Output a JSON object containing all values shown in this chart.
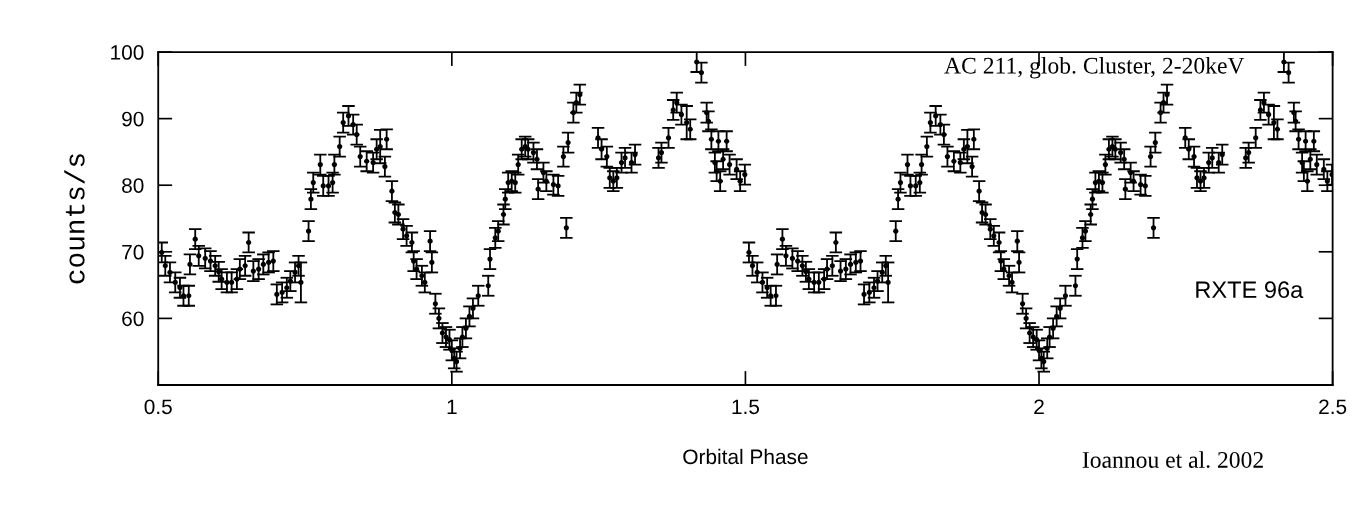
{
  "chart_data": {
    "type": "scatter",
    "xlabel": "Orbital Phase",
    "ylabel": "counts/s",
    "annotations": [
      "AC 211, glob. Cluster, 2-20keV",
      "RXTE 96a",
      "Ioannou et al. 2002"
    ],
    "xlim": [
      0.5,
      2.5
    ],
    "xticks": [
      0.5,
      1,
      1.5,
      2,
      2.5
    ],
    "ylim": [
      50,
      100
    ],
    "yticks": [
      60,
      70,
      80,
      90,
      100
    ],
    "grid": false,
    "legend": false,
    "marker": "circle",
    "x": [
      0.506,
      0.512,
      0.52,
      0.529,
      0.537,
      0.543,
      0.552,
      0.554,
      0.563,
      0.569,
      0.58,
      0.589,
      0.597,
      0.603,
      0.608,
      0.617,
      0.625,
      0.634,
      0.639,
      0.648,
      0.654,
      0.662,
      0.671,
      0.679,
      0.688,
      0.696,
      0.702,
      0.711,
      0.719,
      0.725,
      0.733,
      0.739,
      0.743,
      0.756,
      0.76,
      0.764,
      0.776,
      0.781,
      0.79,
      0.797,
      0.8,
      0.809,
      0.815,
      0.824,
      0.832,
      0.838,
      0.844,
      0.855,
      0.866,
      0.872,
      0.878,
      0.889,
      0.886,
      0.898,
      0.903,
      0.909,
      0.917,
      0.923,
      0.932,
      0.935,
      0.94,
      0.949,
      0.954,
      0.963,
      0.966,
      0.972,
      0.978,
      0.984,
      0.99,
      0.996,
      1.0,
      1.004,
      1.008,
      1.014,
      1.018,
      1.024,
      1.03,
      1.036,
      1.045,
      1.062,
      1.065,
      1.074,
      1.079,
      1.088,
      1.091,
      1.096,
      1.102,
      1.108,
      1.113,
      1.119,
      1.125,
      1.13,
      1.139,
      1.145,
      1.147,
      1.156,
      1.161,
      1.173,
      1.181,
      1.19,
      1.195,
      1.198,
      1.207,
      1.212,
      1.218,
      1.249,
      1.255,
      1.264,
      1.269,
      1.275,
      1.281,
      1.289,
      1.295,
      1.306,
      1.312,
      1.352,
      1.357,
      1.369,
      1.377,
      1.383,
      1.391,
      1.4,
      1.406,
      1.417,
      1.425,
      1.434,
      1.437,
      1.442,
      1.454,
      1.468,
      1.448,
      1.451,
      1.457,
      1.462,
      1.473,
      1.485,
      1.491,
      1.499,
      1.506,
      1.512,
      1.52,
      1.529,
      1.537,
      1.543,
      1.552,
      1.554,
      1.563,
      1.569,
      1.58,
      1.589,
      1.597,
      1.603,
      1.608,
      1.617,
      1.625,
      1.634,
      1.639,
      1.648,
      1.654,
      1.662,
      1.671,
      1.679,
      1.688,
      1.696,
      1.702,
      1.711,
      1.719,
      1.725,
      1.733,
      1.739,
      1.743,
      1.756,
      1.76,
      1.764,
      1.776,
      1.781,
      1.79,
      1.797,
      1.8,
      1.809,
      1.815,
      1.824,
      1.832,
      1.838,
      1.844,
      1.855,
      1.866,
      1.872,
      1.878,
      1.889,
      1.886,
      1.898,
      1.903,
      1.909,
      1.917,
      1.923,
      1.932,
      1.935,
      1.94,
      1.949,
      1.954,
      1.963,
      1.966,
      1.972,
      1.978,
      1.984,
      1.99,
      1.996,
      2.0,
      2.004,
      2.008,
      2.014,
      2.018,
      2.024,
      2.03,
      2.036,
      2.045,
      2.062,
      2.065,
      2.074,
      2.079,
      2.088,
      2.091,
      2.096,
      2.102,
      2.108,
      2.113,
      2.119,
      2.125,
      2.13,
      2.139,
      2.145,
      2.147,
      2.156,
      2.161,
      2.173,
      2.181,
      2.19,
      2.195,
      2.198,
      2.207,
      2.212,
      2.218,
      2.249,
      2.255,
      2.264,
      2.269,
      2.275,
      2.281,
      2.289,
      2.295,
      2.306,
      2.312,
      2.352,
      2.357,
      2.369,
      2.377,
      2.383,
      2.391,
      2.4,
      2.406,
      2.417,
      2.425,
      2.434,
      2.437,
      2.442,
      2.454,
      2.468,
      2.448,
      2.451,
      2.457,
      2.462,
      2.473,
      2.485,
      2.491,
      2.499
    ],
    "series": [
      {
        "color": "#000000",
        "values": [
          69.9,
          67.9,
          66.9,
          65.4,
          64.6,
          63.4,
          63.4,
          68.1,
          71.9,
          69.4,
          69.0,
          68.6,
          67.9,
          67.0,
          65.9,
          65.4,
          65.4,
          65.9,
          67.4,
          67.9,
          71.4,
          67.1,
          67.4,
          68.1,
          68.4,
          68.6,
          63.6,
          63.9,
          64.6,
          65.6,
          66.9,
          67.9,
          65.4,
          73.1,
          77.9,
          80.4,
          83.1,
          79.9,
          79.9,
          80.4,
          83.1,
          85.8,
          89.4,
          90.4,
          89.1,
          87.6,
          84.3,
          83.6,
          83.4,
          85.4,
          85.8,
          86.9,
          82.8,
          79.1,
          75.9,
          75.6,
          73.4,
          72.4,
          71.4,
          68.6,
          67.4,
          66.4,
          65.4,
          71.6,
          68.4,
          62.2,
          60.0,
          57.8,
          57.2,
          56.8,
          55.2,
          54.0,
          53.5,
          55.5,
          57.2,
          58.5,
          60.3,
          61.5,
          63.4,
          64.9,
          68.9,
          72.1,
          73.1,
          75.6,
          77.9,
          80.4,
          80.6,
          80.4,
          83.1,
          85.4,
          85.8,
          85.4,
          84.9,
          83.9,
          79.4,
          81.9,
          80.6,
          80.1,
          79.9,
          84.3,
          73.6,
          86.4,
          90.9,
          92.4,
          93.6,
          87.1,
          85.4,
          84.3,
          81.1,
          80.6,
          81.1,
          83.4,
          84.1,
          83.4,
          84.6,
          84.1,
          84.9,
          87.1,
          91.3,
          92.4,
          90.6,
          89.4,
          88.4,
          98.5,
          96.9,
          90.9,
          89.6,
          86.9,
          86.6,
          86.6,
          83.4,
          82.1,
          80.6,
          83.9,
          83.1,
          82.4,
          80.6,
          81.6,
          69.9,
          67.9,
          66.9,
          65.4,
          64.6,
          63.4,
          63.4,
          68.1,
          71.9,
          69.4,
          69.0,
          68.6,
          67.9,
          67.0,
          65.9,
          65.4,
          65.4,
          65.9,
          67.4,
          67.9,
          71.4,
          67.1,
          67.4,
          68.1,
          68.4,
          68.6,
          63.6,
          63.9,
          64.6,
          65.6,
          66.9,
          67.9,
          65.4,
          73.1,
          77.9,
          80.4,
          83.1,
          79.9,
          79.9,
          80.4,
          83.1,
          85.8,
          89.4,
          90.4,
          89.1,
          87.6,
          84.3,
          83.6,
          83.4,
          85.4,
          85.8,
          86.9,
          82.8,
          79.1,
          75.9,
          75.6,
          73.4,
          72.4,
          71.4,
          68.6,
          67.4,
          66.4,
          65.4,
          71.6,
          68.4,
          62.2,
          60.0,
          57.8,
          57.2,
          56.8,
          55.2,
          54.0,
          53.5,
          55.5,
          57.2,
          58.5,
          60.3,
          61.5,
          63.4,
          64.9,
          68.9,
          72.1,
          73.1,
          75.6,
          77.9,
          80.4,
          80.6,
          80.4,
          83.1,
          85.4,
          85.8,
          85.4,
          84.9,
          83.9,
          79.4,
          81.9,
          80.6,
          80.1,
          79.9,
          84.3,
          73.6,
          86.4,
          90.9,
          92.4,
          93.6,
          87.1,
          85.4,
          84.3,
          81.1,
          80.6,
          81.1,
          83.4,
          84.1,
          83.4,
          84.6,
          84.1,
          84.9,
          87.1,
          91.3,
          92.4,
          90.6,
          89.4,
          88.4,
          98.5,
          96.9,
          90.9,
          89.6,
          86.9,
          86.6,
          86.6,
          83.4,
          82.1,
          80.6,
          83.9,
          83.1,
          82.4,
          80.6,
          81.6
        ],
        "errors": [
          1.5,
          1.5,
          1.5,
          1.5,
          1.5,
          1.5,
          1.5,
          1.5,
          1.5,
          1.5,
          1.5,
          1.5,
          1.5,
          1.5,
          1.5,
          1.5,
          1.5,
          1.5,
          1.5,
          1.5,
          1.5,
          1.5,
          1.5,
          1.5,
          1.5,
          1.5,
          1.5,
          1.5,
          1.5,
          1.5,
          1.5,
          1.5,
          3,
          1.5,
          1.5,
          1.5,
          1.5,
          1.5,
          1.5,
          1.5,
          1.5,
          1.5,
          1.5,
          1.5,
          1.5,
          1.5,
          1.5,
          1.5,
          1.5,
          1.5,
          2.5,
          1.5,
          1.5,
          1.5,
          1.5,
          1.5,
          1.5,
          1.5,
          1.5,
          1.5,
          1.5,
          1.5,
          1.5,
          1.5,
          1.5,
          1.5,
          1.5,
          1.5,
          1.5,
          1.5,
          1.5,
          1.5,
          1.5,
          1.5,
          1.5,
          1.5,
          1.5,
          1.5,
          1.5,
          1.5,
          1.5,
          1.5,
          1.5,
          1.5,
          1.5,
          1.5,
          1.5,
          1.5,
          1.5,
          1.5,
          1.5,
          1.5,
          1.5,
          1.5,
          1.5,
          1.5,
          1.5,
          1.5,
          1.5,
          1.5,
          1.5,
          1.5,
          1.5,
          1.5,
          1.5,
          1.5,
          1.5,
          1.5,
          1.5,
          1.5,
          1.5,
          1.5,
          1.5,
          1.5,
          1.5,
          1.5,
          1.5,
          1.5,
          1.5,
          1.5,
          1.5,
          2.5,
          1.5,
          1.5,
          1.5,
          1.5,
          1.5,
          1.5,
          1.5,
          1.5,
          1.5,
          1.5,
          1.5,
          1.5,
          1.5,
          1.5,
          1.5,
          1.5,
          1.5,
          1.5,
          1.5,
          1.5,
          1.5,
          1.5,
          1.5,
          1.5,
          1.5,
          1.5,
          1.5,
          1.5,
          1.5,
          1.5,
          1.5,
          1.5,
          1.5,
          1.5,
          1.5,
          1.5,
          1.5,
          1.5,
          1.5,
          1.5,
          1.5,
          1.5,
          1.5,
          1.5,
          1.5,
          1.5,
          1.5,
          1.5,
          3,
          1.5,
          1.5,
          1.5,
          1.5,
          1.5,
          1.5,
          1.5,
          1.5,
          1.5,
          1.5,
          1.5,
          1.5,
          1.5,
          1.5,
          1.5,
          1.5,
          1.5,
          2.5,
          1.5,
          1.5,
          1.5,
          1.5,
          1.5,
          1.5,
          1.5,
          1.5,
          1.5,
          1.5,
          1.5,
          1.5,
          1.5,
          1.5,
          1.5,
          1.5,
          1.5,
          1.5,
          1.5,
          1.5,
          1.5,
          1.5,
          1.5,
          1.5,
          1.5,
          1.5,
          1.5,
          1.5,
          1.5,
          1.5,
          1.5,
          1.5,
          1.5,
          1.5,
          1.5,
          1.5,
          1.5,
          1.5,
          1.5,
          1.5,
          1.5,
          1.5,
          1.5,
          1.5,
          1.5,
          1.5,
          1.5,
          1.5,
          1.5,
          1.5,
          1.5,
          1.5,
          1.5,
          1.5,
          1.5,
          1.5,
          1.5,
          1.5,
          1.5,
          1.5,
          1.5,
          1.5,
          1.5,
          1.5,
          1.5,
          1.5,
          1.5,
          1.5,
          1.5,
          1.5,
          2.5,
          1.5,
          1.5,
          1.5,
          1.5,
          1.5,
          1.5,
          1.5,
          1.5,
          1.5,
          1.5,
          1.5,
          1.5,
          1.5,
          1.5,
          1.5,
          1.5
        ]
      }
    ]
  }
}
